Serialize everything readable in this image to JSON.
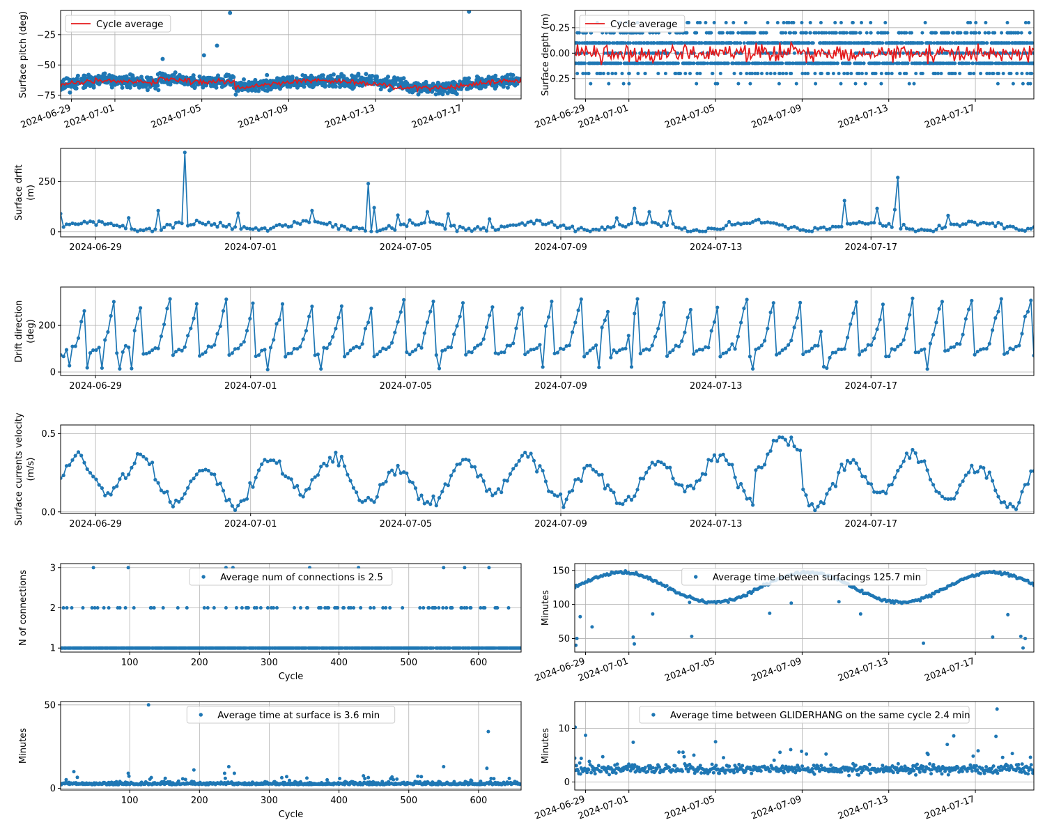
{
  "figure": {
    "width": 1500,
    "height": 1200
  },
  "colors": {
    "series": "#1f77b4",
    "average": "#e41a1c",
    "grid": "#b0b0b0",
    "axis": "#000000"
  },
  "chart_data": [
    {
      "id": "pitch",
      "type": "scatter",
      "ylabel": "Surface pitch (deg)",
      "xlim": [
        179.5,
        200.7
      ],
      "ylim": [
        -78,
        -5
      ],
      "yticks": [
        {
          "value": -25,
          "label": "−25"
        },
        {
          "value": -50,
          "label": "−50"
        },
        {
          "value": -75,
          "label": "−75"
        }
      ],
      "xticks": [
        {
          "value": 180,
          "label": "2024-06-29"
        },
        {
          "value": 182,
          "label": "2024-07-01"
        },
        {
          "value": 186,
          "label": "2024-07-05"
        },
        {
          "value": 190,
          "label": "2024-07-09"
        },
        {
          "value": 194,
          "label": "2024-07-13"
        },
        {
          "value": 198,
          "label": "2024-07-17"
        }
      ],
      "xticks_rotated": true,
      "legend": {
        "label": "Cycle average",
        "position": "upper-left",
        "marker": "line"
      },
      "gen": {
        "kind": "pitch",
        "x0": 179.5,
        "x1": 200.7,
        "n": 1200,
        "seed": 11
      },
      "avg_gen": {
        "kind": "pitch_avg",
        "x0": 179.5,
        "x1": 200.7,
        "n": 330,
        "seed": 12
      },
      "extra_points": [
        [
          187.3,
          -7
        ],
        [
          198.3,
          -6
        ],
        [
          186.7,
          -34
        ],
        [
          186.1,
          -42
        ],
        [
          184.2,
          -45
        ]
      ]
    },
    {
      "id": "depth",
      "type": "scatter",
      "ylabel": "Surface depth (m)",
      "xlim": [
        179.5,
        200.7
      ],
      "ylim": [
        -0.45,
        0.42
      ],
      "yticks": [
        {
          "value": 0.25,
          "label": "0.25"
        },
        {
          "value": 0.0,
          "label": "0.00"
        },
        {
          "value": -0.25,
          "label": "−0.25"
        }
      ],
      "xticks": [
        {
          "value": 180,
          "label": "2024-06-29"
        },
        {
          "value": 182,
          "label": "2024-07-01"
        },
        {
          "value": 186,
          "label": "2024-07-05"
        },
        {
          "value": 190,
          "label": "2024-07-09"
        },
        {
          "value": 194,
          "label": "2024-07-13"
        },
        {
          "value": 198,
          "label": "2024-07-17"
        }
      ],
      "xticks_rotated": true,
      "legend": {
        "label": "Cycle average",
        "position": "upper-left",
        "marker": "line"
      },
      "gen": {
        "kind": "depth",
        "x0": 179.5,
        "x1": 200.7,
        "n": 1500,
        "seed": 21
      },
      "avg_gen": {
        "kind": "depth_avg",
        "x0": 179.5,
        "x1": 200.7,
        "n": 330,
        "seed": 22
      }
    },
    {
      "id": "drift",
      "type": "line",
      "ylabel": [
        "Surface drfit",
        "(m)"
      ],
      "xlim": [
        178.55,
        191.1
      ],
      "ylim": [
        -25,
        415
      ],
      "yticks": [
        {
          "value": 250,
          "label": "250"
        },
        {
          "value": 0,
          "label": "0"
        }
      ],
      "xticks": [
        {
          "value": 179,
          "label": "2024-06-29"
        },
        {
          "value": 181,
          "label": "2024-07-01"
        },
        {
          "value": 183,
          "label": "2024-07-05"
        },
        {
          "value": 185,
          "label": "2024-07-09"
        },
        {
          "value": 187,
          "label": "2024-07-13"
        },
        {
          "value": 189,
          "label": "2024-07-17"
        }
      ],
      "xticks_rotated": false,
      "markers": true,
      "gen": {
        "kind": "drift",
        "x0": 178.55,
        "x1": 191.1,
        "n": 330,
        "seed": 31
      },
      "spikes": [
        [
          180.14,
          395
        ],
        [
          182.5,
          240
        ],
        [
          182.6,
          120
        ],
        [
          189.35,
          270
        ],
        [
          189.3,
          110
        ],
        [
          188.64,
          155
        ]
      ]
    },
    {
      "id": "direction",
      "type": "line",
      "ylabel": [
        "Drift direction",
        "(deg)"
      ],
      "xlim": [
        178.55,
        191.1
      ],
      "ylim": [
        -15,
        365
      ],
      "yticks": [
        {
          "value": 200,
          "label": "200"
        },
        {
          "value": 0,
          "label": "0"
        }
      ],
      "xticks": [
        {
          "value": 179,
          "label": "2024-06-29"
        },
        {
          "value": 181,
          "label": "2024-07-01"
        },
        {
          "value": 183,
          "label": "2024-07-05"
        },
        {
          "value": 185,
          "label": "2024-07-09"
        },
        {
          "value": 187,
          "label": "2024-07-13"
        },
        {
          "value": 189,
          "label": "2024-07-17"
        }
      ],
      "xticks_rotated": false,
      "markers": true,
      "gen": {
        "kind": "direction",
        "x0": 178.55,
        "x1": 191.1,
        "n": 330,
        "seed": 41
      }
    },
    {
      "id": "velocity",
      "type": "line",
      "ylabel": [
        "Surface currents velocity",
        "(m/s)"
      ],
      "xlim": [
        178.55,
        191.1
      ],
      "ylim": [
        -0.01,
        0.555
      ],
      "yticks": [
        {
          "value": 0.5,
          "label": "0.5"
        },
        {
          "value": 0.0,
          "label": "0.0"
        }
      ],
      "xticks": [
        {
          "value": 179,
          "label": "2024-06-29"
        },
        {
          "value": 181,
          "label": "2024-07-01"
        },
        {
          "value": 183,
          "label": "2024-07-05"
        },
        {
          "value": 185,
          "label": "2024-07-09"
        },
        {
          "value": 187,
          "label": "2024-07-13"
        },
        {
          "value": 189,
          "label": "2024-07-17"
        }
      ],
      "xticks_rotated": false,
      "markers": true,
      "gen": {
        "kind": "velocity",
        "x0": 178.55,
        "x1": 191.1,
        "n": 330,
        "seed": 51
      }
    },
    {
      "id": "connections",
      "type": "scatter",
      "xlabel": "Cycle",
      "ylabel": "N of connections",
      "xlim": [
        1,
        661
      ],
      "ylim": [
        0.9,
        3.1
      ],
      "yticks": [
        {
          "value": 3,
          "label": "3"
        },
        {
          "value": 2,
          "label": "2"
        },
        {
          "value": 1,
          "label": "1"
        }
      ],
      "xticks": [
        {
          "value": 100,
          "label": "100"
        },
        {
          "value": 200,
          "label": "200"
        },
        {
          "value": 300,
          "label": "300"
        },
        {
          "value": 400,
          "label": "400"
        },
        {
          "value": 500,
          "label": "500"
        },
        {
          "value": 600,
          "label": "600"
        }
      ],
      "xticks_rotated": false,
      "legend": {
        "label": "Average num of connections is 2.5",
        "position": "upper-center",
        "marker": "dot"
      },
      "gen": {
        "kind": "connections",
        "x0": 1,
        "x1": 661,
        "n": 660,
        "seed": 61
      },
      "extra_points": [
        [
          48,
          3
        ],
        [
          98,
          3
        ],
        [
          238,
          3
        ],
        [
          248,
          3
        ],
        [
          358,
          3
        ],
        [
          428,
          3
        ],
        [
          550,
          3
        ],
        [
          580,
          3
        ],
        [
          615,
          3
        ]
      ]
    },
    {
      "id": "between",
      "type": "scatter",
      "ylabel": "Minutes",
      "xlim": [
        179.5,
        200.7
      ],
      "ylim": [
        30,
        160
      ],
      "yticks": [
        {
          "value": 150,
          "label": "150"
        },
        {
          "value": 100,
          "label": "100"
        },
        {
          "value": 50,
          "label": "50"
        }
      ],
      "xticks": [
        {
          "value": 180,
          "label": "2024-06-29"
        },
        {
          "value": 182,
          "label": "2024-07-01"
        },
        {
          "value": 186,
          "label": "2024-07-05"
        },
        {
          "value": 190,
          "label": "2024-07-09"
        },
        {
          "value": 194,
          "label": "2024-07-13"
        },
        {
          "value": 198,
          "label": "2024-07-17"
        }
      ],
      "xticks_rotated": true,
      "legend": {
        "label": "Average time between surfacings 125.7 min",
        "position": "upper-center",
        "marker": "dot"
      },
      "gen": {
        "kind": "between",
        "x0": 179.5,
        "x1": 200.7,
        "n": 300,
        "seed": 71
      },
      "extra_points": [
        [
          179.55,
          40
        ],
        [
          179.6,
          50
        ],
        [
          179.75,
          82
        ],
        [
          180.3,
          67
        ],
        [
          182.2,
          52
        ],
        [
          182.25,
          42
        ],
        [
          183.1,
          86
        ],
        [
          184.8,
          103
        ],
        [
          184.9,
          53
        ],
        [
          188.5,
          87
        ],
        [
          189.5,
          102
        ],
        [
          191.7,
          104
        ],
        [
          192.7,
          86
        ],
        [
          195.6,
          43
        ],
        [
          198.8,
          52
        ],
        [
          199.5,
          85
        ],
        [
          200.1,
          53
        ],
        [
          200.3,
          50
        ],
        [
          200.2,
          36
        ]
      ]
    },
    {
      "id": "at-surface",
      "type": "scatter",
      "xlabel": "Cycle",
      "ylabel": "Minutes",
      "xlim": [
        1,
        661
      ],
      "ylim": [
        -1,
        52
      ],
      "yticks": [
        {
          "value": 50,
          "label": "50"
        },
        {
          "value": 0,
          "label": "0"
        }
      ],
      "xticks": [
        {
          "value": 100,
          "label": "100"
        },
        {
          "value": 200,
          "label": "200"
        },
        {
          "value": 300,
          "label": "300"
        },
        {
          "value": 400,
          "label": "400"
        },
        {
          "value": 500,
          "label": "500"
        },
        {
          "value": 600,
          "label": "600"
        }
      ],
      "xticks_rotated": false,
      "legend": {
        "label": "Average time at surface is 3.6 min",
        "position": "upper-center",
        "marker": "dot"
      },
      "gen": {
        "kind": "at_surface",
        "x0": 1,
        "x1": 661,
        "n": 660,
        "seed": 81
      },
      "extra_points": [
        [
          127,
          50
        ],
        [
          614,
          34
        ],
        [
          192,
          11
        ],
        [
          242,
          13
        ],
        [
          250,
          9
        ],
        [
          550,
          13
        ],
        [
          98,
          9
        ],
        [
          612,
          12
        ],
        [
          20,
          10
        ],
        [
          236,
          9
        ]
      ]
    },
    {
      "id": "gliderhang",
      "type": "scatter",
      "ylabel": "Minutes",
      "xlim": [
        179.5,
        200.7
      ],
      "ylim": [
        -1.5,
        15
      ],
      "yticks": [
        {
          "value": 10,
          "label": "10"
        },
        {
          "value": 0,
          "label": "0"
        }
      ],
      "xticks": [
        {
          "value": 180,
          "label": "2024-06-29"
        },
        {
          "value": 182,
          "label": "2024-07-01"
        },
        {
          "value": 186,
          "label": "2024-07-05"
        },
        {
          "value": 190,
          "label": "2024-07-09"
        },
        {
          "value": 194,
          "label": "2024-07-13"
        },
        {
          "value": 198,
          "label": "2024-07-17"
        }
      ],
      "xticks_rotated": true,
      "legend": {
        "label": "Average time between GLIDERHANG on the same cycle 2.4 min",
        "position": "upper-center",
        "marker": "dot"
      },
      "gen": {
        "kind": "glider",
        "x0": 179.5,
        "x1": 200.7,
        "n": 560,
        "seed": 91
      },
      "extra_points": [
        [
          179.52,
          10.2
        ],
        [
          180.0,
          8.7
        ],
        [
          199.0,
          13.6
        ],
        [
          198.95,
          8.5
        ],
        [
          197.0,
          8.6
        ],
        [
          196.7,
          7.0
        ],
        [
          182.2,
          7.4
        ],
        [
          186.0,
          7.5
        ],
        [
          185.0,
          5.0
        ],
        [
          190.2,
          5.2
        ],
        [
          179.8,
          4.4
        ]
      ]
    }
  ]
}
